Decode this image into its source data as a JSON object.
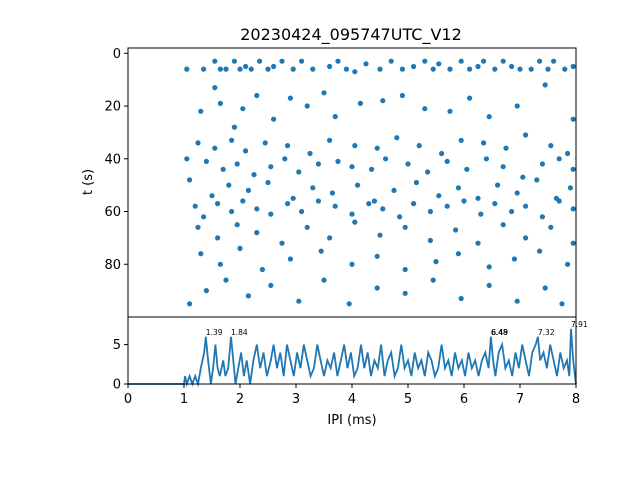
{
  "chart_data": [
    {
      "type": "scatter",
      "title": "20230424_095747UTC_V12",
      "ylabel": "t (s)",
      "xlabel": "",
      "xlim": [
        0,
        8
      ],
      "ylim": [
        100,
        -2
      ],
      "yticks": [
        "0",
        "20",
        "40",
        "60",
        "80"
      ],
      "color": "#1f77b4",
      "grid": false,
      "legend": "none",
      "note": "Raster of inter-pulse intervals; each dot is one IPI (ms) at time t (s). Points are a representative sample read from the figure.",
      "points": [
        [
          1.05,
          6
        ],
        [
          1.35,
          6
        ],
        [
          1.55,
          3
        ],
        [
          1.65,
          6
        ],
        [
          1.75,
          6
        ],
        [
          1.9,
          3
        ],
        [
          2.0,
          6
        ],
        [
          2.1,
          5
        ],
        [
          2.2,
          6
        ],
        [
          2.35,
          3
        ],
        [
          2.5,
          6
        ],
        [
          2.6,
          5
        ],
        [
          2.75,
          3
        ],
        [
          2.95,
          6
        ],
        [
          3.1,
          3
        ],
        [
          3.3,
          6
        ],
        [
          3.6,
          5
        ],
        [
          3.75,
          3
        ],
        [
          3.9,
          6
        ],
        [
          4.05,
          7
        ],
        [
          4.25,
          4
        ],
        [
          4.5,
          6
        ],
        [
          4.7,
          3
        ],
        [
          4.9,
          6
        ],
        [
          5.1,
          5
        ],
        [
          5.3,
          3
        ],
        [
          5.45,
          6
        ],
        [
          5.55,
          4
        ],
        [
          5.75,
          6
        ],
        [
          5.95,
          3
        ],
        [
          6.1,
          6
        ],
        [
          6.25,
          5
        ],
        [
          6.35,
          3
        ],
        [
          6.55,
          6
        ],
        [
          6.7,
          3
        ],
        [
          6.85,
          5
        ],
        [
          7.0,
          6
        ],
        [
          7.2,
          6
        ],
        [
          7.35,
          3
        ],
        [
          7.5,
          6
        ],
        [
          7.6,
          3
        ],
        [
          7.8,
          6
        ],
        [
          7.95,
          5
        ],
        [
          1.3,
          22
        ],
        [
          1.55,
          13
        ],
        [
          1.65,
          19
        ],
        [
          1.9,
          28
        ],
        [
          2.05,
          21
        ],
        [
          2.3,
          16
        ],
        [
          2.6,
          25
        ],
        [
          2.9,
          17
        ],
        [
          3.2,
          20
        ],
        [
          3.5,
          15
        ],
        [
          3.7,
          24
        ],
        [
          4.15,
          19
        ],
        [
          4.55,
          18
        ],
        [
          4.9,
          16
        ],
        [
          5.3,
          21
        ],
        [
          5.75,
          22
        ],
        [
          6.1,
          17
        ],
        [
          6.45,
          24
        ],
        [
          6.95,
          20
        ],
        [
          7.45,
          12
        ],
        [
          7.95,
          25
        ],
        [
          1.25,
          34
        ],
        [
          1.55,
          36
        ],
        [
          1.85,
          33
        ],
        [
          2.1,
          37
        ],
        [
          2.45,
          34
        ],
        [
          2.85,
          35
        ],
        [
          3.25,
          38
        ],
        [
          3.6,
          33
        ],
        [
          4.05,
          35
        ],
        [
          4.45,
          36
        ],
        [
          4.8,
          32
        ],
        [
          5.2,
          35
        ],
        [
          5.6,
          38
        ],
        [
          5.95,
          33
        ],
        [
          6.35,
          34
        ],
        [
          6.75,
          36
        ],
        [
          7.1,
          31
        ],
        [
          7.55,
          35
        ],
        [
          7.85,
          38
        ],
        [
          1.05,
          40
        ],
        [
          1.4,
          41
        ],
        [
          1.7,
          44
        ],
        [
          1.95,
          42
        ],
        [
          2.25,
          46
        ],
        [
          2.55,
          43
        ],
        [
          2.8,
          40
        ],
        [
          3.05,
          45
        ],
        [
          3.4,
          42
        ],
        [
          3.75,
          41
        ],
        [
          4.0,
          43
        ],
        [
          4.35,
          44
        ],
        [
          4.6,
          40
        ],
        [
          5.0,
          42
        ],
        [
          5.35,
          45
        ],
        [
          5.7,
          41
        ],
        [
          6.05,
          44
        ],
        [
          6.4,
          40
        ],
        [
          6.7,
          43
        ],
        [
          7.05,
          47
        ],
        [
          7.4,
          42
        ],
        [
          7.7,
          40
        ],
        [
          7.95,
          44
        ],
        [
          1.1,
          48
        ],
        [
          1.5,
          54
        ],
        [
          1.8,
          50
        ],
        [
          2.15,
          52
        ],
        [
          2.5,
          49
        ],
        [
          2.95,
          55
        ],
        [
          3.3,
          51
        ],
        [
          3.65,
          53
        ],
        [
          4.1,
          50
        ],
        [
          4.4,
          56
        ],
        [
          4.75,
          52
        ],
        [
          5.15,
          49
        ],
        [
          5.55,
          54
        ],
        [
          5.9,
          51
        ],
        [
          6.25,
          55
        ],
        [
          6.6,
          50
        ],
        [
          6.95,
          53
        ],
        [
          7.3,
          48
        ],
        [
          7.65,
          55
        ],
        [
          7.9,
          51
        ],
        [
          1.2,
          58
        ],
        [
          1.35,
          62
        ],
        [
          1.6,
          57
        ],
        [
          1.85,
          60
        ],
        [
          2.05,
          56
        ],
        [
          2.3,
          59
        ],
        [
          2.55,
          61
        ],
        [
          2.85,
          57
        ],
        [
          3.1,
          60
        ],
        [
          3.4,
          56
        ],
        [
          3.7,
          58
        ],
        [
          4.0,
          61
        ],
        [
          4.3,
          57
        ],
        [
          4.55,
          59
        ],
        [
          4.85,
          62
        ],
        [
          5.1,
          57
        ],
        [
          5.4,
          60
        ],
        [
          5.7,
          58
        ],
        [
          6.0,
          56
        ],
        [
          6.3,
          61
        ],
        [
          6.55,
          57
        ],
        [
          6.85,
          60
        ],
        [
          7.1,
          58
        ],
        [
          7.4,
          62
        ],
        [
          7.7,
          56
        ],
        [
          7.95,
          59
        ],
        [
          1.25,
          66
        ],
        [
          1.6,
          70
        ],
        [
          1.95,
          65
        ],
        [
          2.3,
          68
        ],
        [
          2.75,
          72
        ],
        [
          3.2,
          66
        ],
        [
          3.6,
          70
        ],
        [
          4.05,
          64
        ],
        [
          4.5,
          69
        ],
        [
          4.95,
          66
        ],
        [
          5.4,
          71
        ],
        [
          5.85,
          67
        ],
        [
          6.25,
          72
        ],
        [
          6.7,
          65
        ],
        [
          7.1,
          70
        ],
        [
          7.55,
          66
        ],
        [
          7.95,
          72
        ],
        [
          1.3,
          76
        ],
        [
          1.65,
          80
        ],
        [
          2.0,
          74
        ],
        [
          2.4,
          82
        ],
        [
          2.9,
          78
        ],
        [
          3.45,
          75
        ],
        [
          4.0,
          80
        ],
        [
          4.45,
          77
        ],
        [
          4.95,
          82
        ],
        [
          5.5,
          79
        ],
        [
          5.9,
          76
        ],
        [
          6.45,
          81
        ],
        [
          6.9,
          78
        ],
        [
          7.35,
          75
        ],
        [
          7.85,
          80
        ],
        [
          1.1,
          95
        ],
        [
          1.4,
          90
        ],
        [
          1.75,
          86
        ],
        [
          2.15,
          92
        ],
        [
          2.55,
          88
        ],
        [
          3.05,
          94
        ],
        [
          3.5,
          86
        ],
        [
          3.95,
          95
        ],
        [
          4.45,
          89
        ],
        [
          4.95,
          91
        ],
        [
          5.45,
          86
        ],
        [
          5.95,
          93
        ],
        [
          6.45,
          88
        ],
        [
          6.95,
          94
        ],
        [
          7.45,
          89
        ],
        [
          7.75,
          95
        ]
      ]
    },
    {
      "type": "line",
      "xlabel": "IPI (ms)",
      "ylabel": "",
      "xlim": [
        0,
        8
      ],
      "ylim": [
        0,
        8.5
      ],
      "xticks": [
        "0",
        "1",
        "2",
        "3",
        "4",
        "5",
        "6",
        "7",
        "8"
      ],
      "yticks": [
        "0",
        "5"
      ],
      "color": "#1f77b4",
      "peaks": [
        {
          "x": 1.39,
          "label": "1.39"
        },
        {
          "x": 1.84,
          "label": "1.84"
        },
        {
          "x": 6.48,
          "label": "6.48"
        },
        {
          "x": 6.49,
          "label": "6.49"
        },
        {
          "x": 7.32,
          "label": "7.32"
        },
        {
          "x": 7.91,
          "label": "7.91"
        }
      ],
      "series": [
        {
          "values": [
            [
              0,
              0
            ],
            [
              1.0,
              0
            ],
            [
              1.02,
              1
            ],
            [
              1.05,
              0
            ],
            [
              1.1,
              1
            ],
            [
              1.15,
              0
            ],
            [
              1.2,
              1
            ],
            [
              1.25,
              0
            ],
            [
              1.3,
              2
            ],
            [
              1.36,
              4
            ],
            [
              1.39,
              6
            ],
            [
              1.43,
              3
            ],
            [
              1.48,
              0
            ],
            [
              1.52,
              2
            ],
            [
              1.56,
              5
            ],
            [
              1.6,
              2
            ],
            [
              1.64,
              1
            ],
            [
              1.7,
              3
            ],
            [
              1.74,
              1
            ],
            [
              1.79,
              2
            ],
            [
              1.84,
              6
            ],
            [
              1.88,
              3
            ],
            [
              1.92,
              0
            ],
            [
              1.97,
              2
            ],
            [
              2.02,
              4
            ],
            [
              2.07,
              1
            ],
            [
              2.12,
              3
            ],
            [
              2.18,
              0
            ],
            [
              2.24,
              3
            ],
            [
              2.3,
              5
            ],
            [
              2.36,
              2
            ],
            [
              2.42,
              4
            ],
            [
              2.48,
              1
            ],
            [
              2.55,
              3
            ],
            [
              2.6,
              5
            ],
            [
              2.66,
              2
            ],
            [
              2.72,
              4
            ],
            [
              2.78,
              1
            ],
            [
              2.84,
              5
            ],
            [
              2.9,
              3
            ],
            [
              2.96,
              1
            ],
            [
              3.02,
              4
            ],
            [
              3.08,
              2
            ],
            [
              3.14,
              5
            ],
            [
              3.2,
              3
            ],
            [
              3.26,
              1
            ],
            [
              3.32,
              2
            ],
            [
              3.38,
              5
            ],
            [
              3.44,
              3
            ],
            [
              3.5,
              1
            ],
            [
              3.56,
              3
            ],
            [
              3.62,
              2
            ],
            [
              3.68,
              4
            ],
            [
              3.74,
              1
            ],
            [
              3.8,
              3
            ],
            [
              3.86,
              5
            ],
            [
              3.92,
              2
            ],
            [
              3.98,
              4
            ],
            [
              4.04,
              1
            ],
            [
              4.1,
              2
            ],
            [
              4.16,
              5
            ],
            [
              4.22,
              2
            ],
            [
              4.28,
              4
            ],
            [
              4.34,
              1
            ],
            [
              4.4,
              3
            ],
            [
              4.46,
              2
            ],
            [
              4.52,
              5
            ],
            [
              4.58,
              1
            ],
            [
              4.64,
              3
            ],
            [
              4.7,
              4
            ],
            [
              4.76,
              1
            ],
            [
              4.82,
              2
            ],
            [
              4.88,
              5
            ],
            [
              4.94,
              2
            ],
            [
              5.0,
              3
            ],
            [
              5.06,
              1
            ],
            [
              5.12,
              4
            ],
            [
              5.18,
              2
            ],
            [
              5.24,
              3
            ],
            [
              5.3,
              1
            ],
            [
              5.36,
              4
            ],
            [
              5.42,
              3
            ],
            [
              5.48,
              1
            ],
            [
              5.54,
              2
            ],
            [
              5.6,
              5
            ],
            [
              5.66,
              2
            ],
            [
              5.72,
              3
            ],
            [
              5.78,
              1
            ],
            [
              5.84,
              4
            ],
            [
              5.9,
              2
            ],
            [
              5.96,
              3
            ],
            [
              6.02,
              1
            ],
            [
              6.08,
              4
            ],
            [
              6.14,
              2
            ],
            [
              6.2,
              3
            ],
            [
              6.26,
              1
            ],
            [
              6.32,
              3
            ],
            [
              6.38,
              4
            ],
            [
              6.44,
              2
            ],
            [
              6.48,
              6
            ],
            [
              6.52,
              3
            ],
            [
              6.56,
              1
            ],
            [
              6.62,
              4
            ],
            [
              6.68,
              5
            ],
            [
              6.74,
              2
            ],
            [
              6.8,
              3
            ],
            [
              6.86,
              1
            ],
            [
              6.92,
              4
            ],
            [
              6.98,
              2
            ],
            [
              7.04,
              5
            ],
            [
              7.1,
              3
            ],
            [
              7.16,
              1
            ],
            [
              7.22,
              4
            ],
            [
              7.28,
              5
            ],
            [
              7.32,
              6
            ],
            [
              7.36,
              3
            ],
            [
              7.42,
              4
            ],
            [
              7.48,
              2
            ],
            [
              7.54,
              5
            ],
            [
              7.6,
              3
            ],
            [
              7.66,
              1
            ],
            [
              7.72,
              4
            ],
            [
              7.78,
              2
            ],
            [
              7.84,
              3
            ],
            [
              7.88,
              1
            ],
            [
              7.91,
              7
            ],
            [
              7.95,
              3
            ],
            [
              8.0,
              0
            ]
          ]
        }
      ]
    }
  ]
}
